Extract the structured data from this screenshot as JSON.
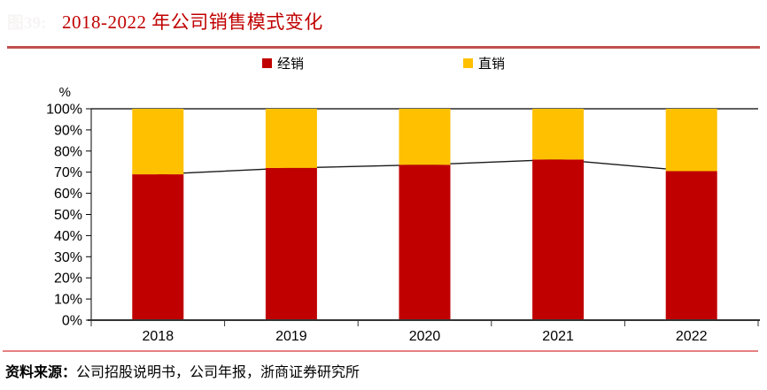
{
  "figure": {
    "number": "图39:",
    "title": "2018-2022 年公司销售模式变化"
  },
  "legend": [
    {
      "label": "经销",
      "color": "#c00000"
    },
    {
      "label": "直销",
      "color": "#ffc000"
    }
  ],
  "source": {
    "prefix": "资料来源：",
    "text": "公司招股说明书，公司年报，浙商证券研究所"
  },
  "colors": {
    "distribution_red": "#c00000",
    "direct_yellow": "#ffc000",
    "title_red": "#c00000",
    "title_divider_red": "#c0504d",
    "source_divider_pink": "#e68080",
    "trend_line_black": "#1a1a1a"
  },
  "chart_data": {
    "type": "bar",
    "stacked": true,
    "title": "2018-2022 年公司销售模式变化",
    "categories": [
      "2018",
      "2019",
      "2020",
      "2021",
      "2022"
    ],
    "series": [
      {
        "name": "经销",
        "color": "#c00000",
        "values": [
          69,
          72,
          73.5,
          76,
          70.5
        ]
      },
      {
        "name": "直销",
        "color": "#ffc000",
        "values": [
          31,
          28,
          26.5,
          24,
          29.5
        ]
      }
    ],
    "line_overlay": {
      "name": "经销占比连线",
      "color": "#1a1a1a",
      "values": [
        69,
        72,
        73.5,
        76,
        70.5
      ]
    },
    "xlabel": "",
    "ylabel": "%",
    "ylim": [
      0,
      100
    ],
    "ytick_step": 10,
    "ytick_suffix": "%",
    "grid": false,
    "legend_position": "top-center"
  }
}
